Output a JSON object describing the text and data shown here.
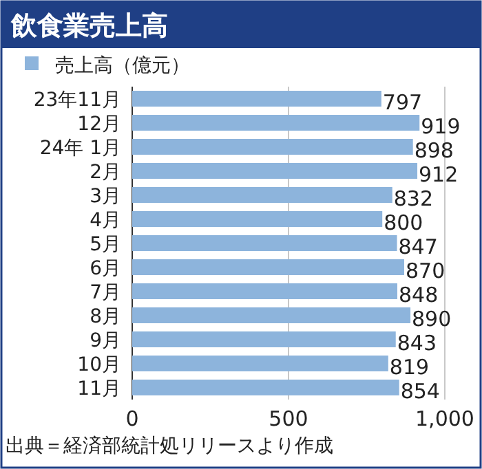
{
  "chart_data": {
    "type": "bar",
    "orientation": "horizontal",
    "title": "飲食業売上高",
    "categories": [
      "23年11月",
      "12月",
      "24年 1月",
      "2月",
      "3月",
      "4月",
      "5月",
      "6月",
      "7月",
      "8月",
      "9月",
      "10月",
      "11月"
    ],
    "series": [
      {
        "name": "売上高（億元）",
        "color": "#8db4dc",
        "values": [
          797,
          919,
          898,
          912,
          832,
          800,
          847,
          870,
          848,
          890,
          843,
          819,
          854
        ]
      }
    ],
    "data_labels": true,
    "xlim": [
      0,
      1000
    ],
    "xticks": [
      0,
      500,
      {
        "value": 1000,
        "label": "1,000"
      }
    ],
    "grid": "x",
    "legend": "top left",
    "annotations": [
      "出典＝経済部統計処リリースより作成"
    ]
  }
}
